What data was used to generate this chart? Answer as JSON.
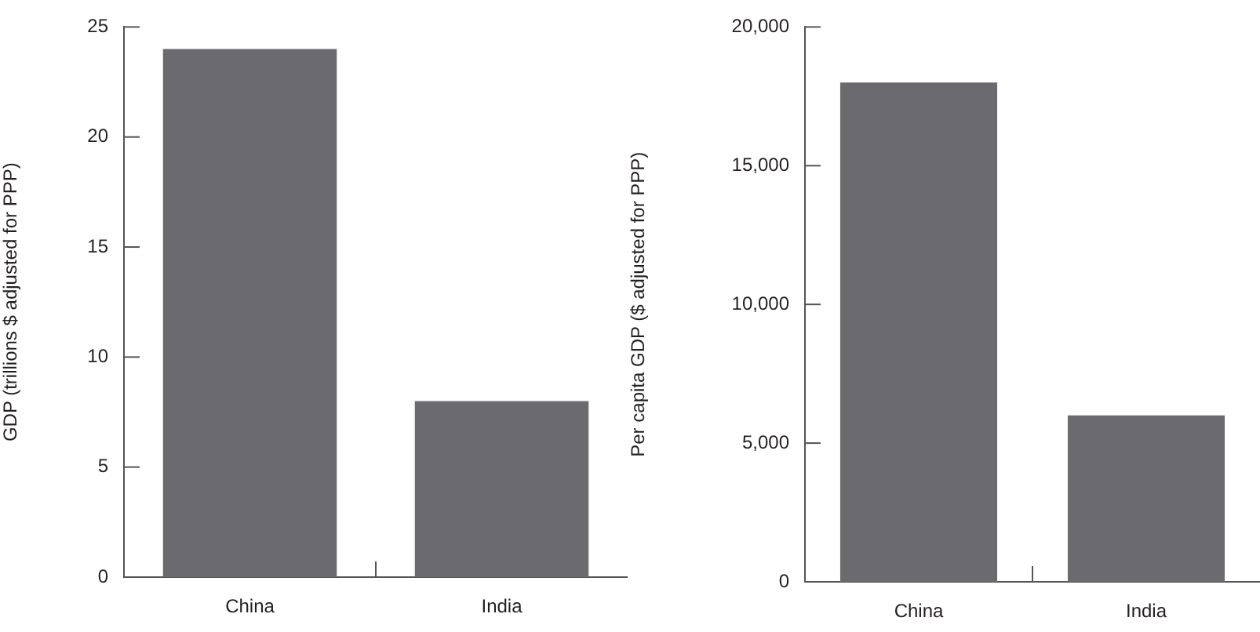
{
  "chart_data": [
    {
      "type": "bar",
      "ylabel": "GDP (trillions $ adjusted for PPP)",
      "categories": [
        "China",
        "India"
      ],
      "values": [
        24,
        8
      ],
      "color": "#6b6b6f",
      "ylim": [
        0,
        25
      ],
      "yticks": [
        0,
        5,
        10,
        15,
        20,
        25
      ],
      "grid": false,
      "legend": false
    },
    {
      "type": "bar",
      "ylabel": "Per capita GDP ($ adjusted for PPP)",
      "categories": [
        "China",
        "India"
      ],
      "values": [
        18000,
        6000
      ],
      "color": "#6b6b6f",
      "ylim": [
        0,
        20000
      ],
      "yticks": [
        0,
        {
          "value": 5000,
          "label": "5,000"
        },
        {
          "value": 10000,
          "label": "10,000"
        },
        {
          "value": 15000,
          "label": "15,000"
        },
        {
          "value": 20000,
          "label": "20,000"
        }
      ],
      "grid": false,
      "legend": false
    }
  ]
}
